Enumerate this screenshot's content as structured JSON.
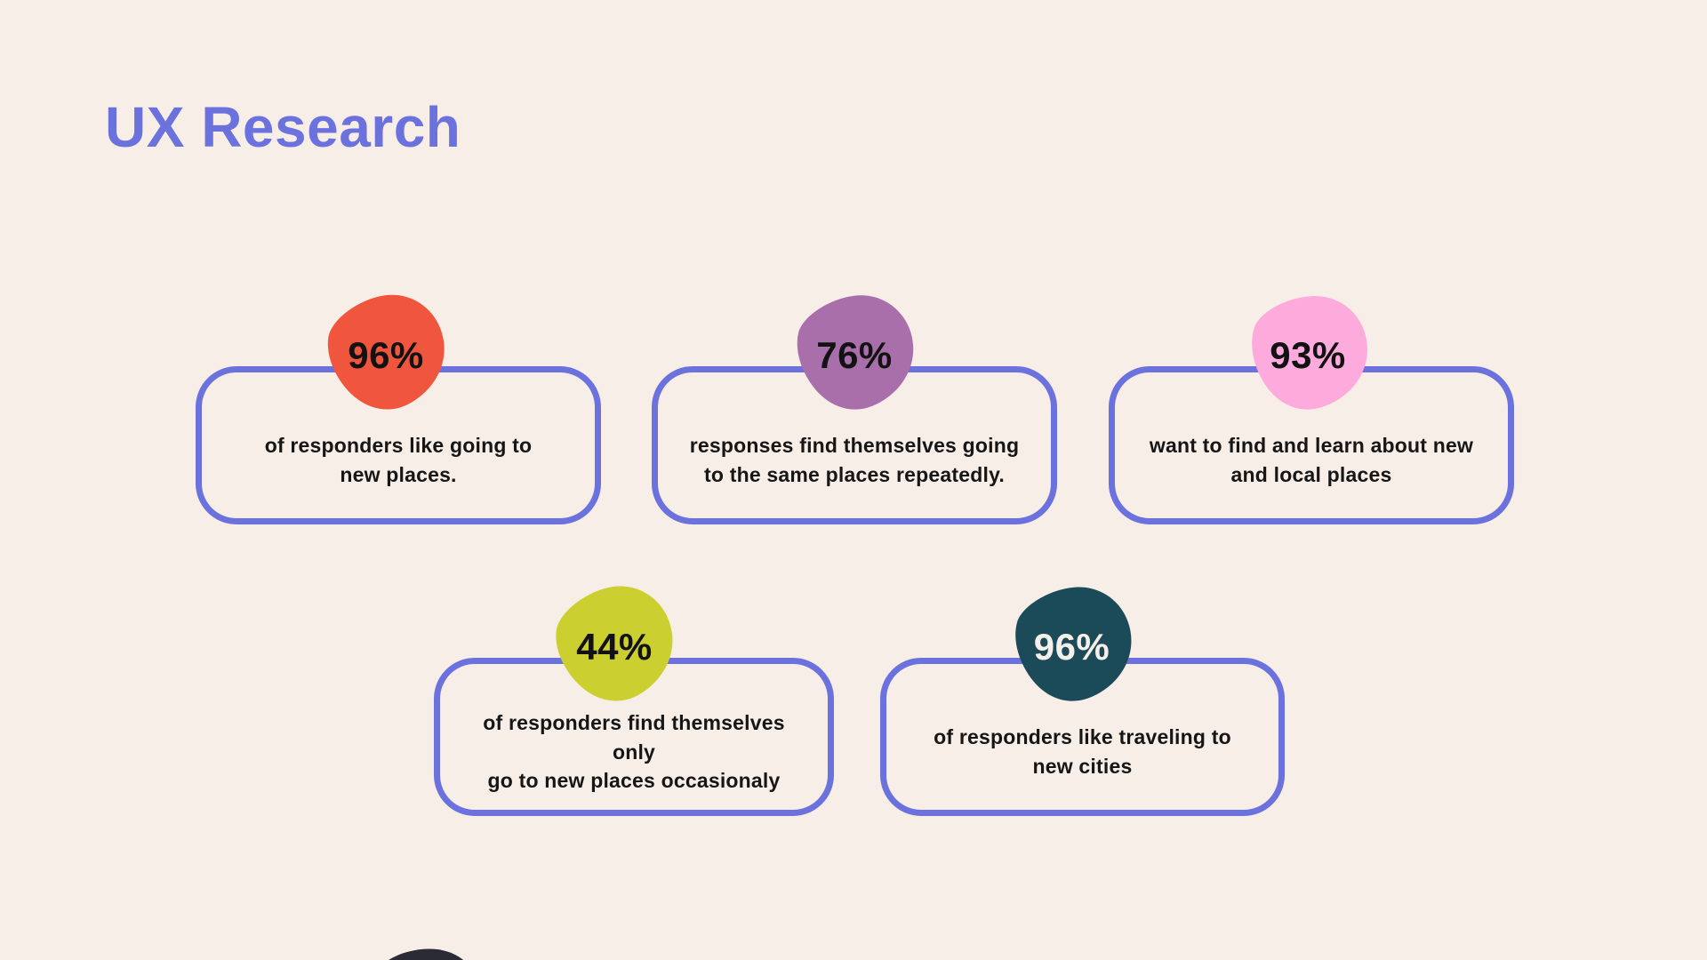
{
  "page": {
    "title": "UX Research",
    "background_color": "#F8EEE8",
    "accent_color": "#6B72DD",
    "text_color": "#161616"
  },
  "cards": [
    {
      "percent": "96%",
      "description": "of responders like going to\nnew places.",
      "blob_color": "#F0563D",
      "percent_text_color": "#121212"
    },
    {
      "percent": "76%",
      "description": "responses find themselves going\nto the same places repeatedly.",
      "blob_color": "#A96FAA",
      "percent_text_color": "#121212"
    },
    {
      "percent": "93%",
      "description": "want to find and learn about new\nand local places",
      "blob_color": "#FDAADC",
      "percent_text_color": "#121212"
    },
    {
      "percent": "44%",
      "description": "of responders find themselves only\ngo to new places occasionaly",
      "blob_color": "#CBCF2F",
      "percent_text_color": "#121212"
    },
    {
      "percent": "96%",
      "description": "of responders like traveling to\nnew cities",
      "blob_color": "#1B4B59",
      "percent_text_color": "#F7F0EA"
    }
  ],
  "decor": {
    "bottom_edge_blob_color": "#2B2B35"
  }
}
